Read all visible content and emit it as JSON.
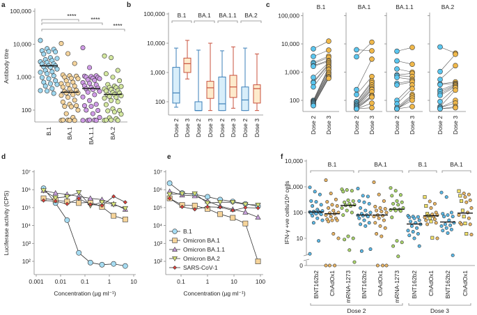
{
  "chart_data": [
    {
      "panel_label": "a",
      "type": "scatter",
      "ylabel": "Antibody titre",
      "yscale": "log",
      "ylim": [
        40,
        100000
      ],
      "yticks": [
        "100",
        "1,000",
        "10,000",
        "100,000"
      ],
      "categories": [
        "B.1",
        "BA.1",
        "BA.1.1",
        "BA.2"
      ],
      "colors": [
        "#9fd8f0",
        "#f5d49c",
        "#cf9be6",
        "#d4e8a0"
      ],
      "medians": [
        2200,
        350,
        450,
        300
      ],
      "values": [
        [
          13000,
          7500,
          7000,
          6500,
          6000,
          6000,
          5000,
          4000,
          3700,
          3500,
          3200,
          3000,
          2800,
          2600,
          2500,
          2300,
          2200,
          2100,
          2000,
          1800,
          1600,
          1500,
          1400,
          1300,
          1100,
          1000,
          900,
          800,
          700,
          650,
          600,
          550,
          450,
          400,
          380,
          330
        ],
        [
          10500,
          5300,
          2600,
          1200,
          1100,
          1100,
          1000,
          950,
          900,
          800,
          700,
          650,
          600,
          550,
          500,
          450,
          400,
          380,
          350,
          340,
          330,
          300,
          280,
          250,
          200,
          180,
          150,
          140,
          130,
          130,
          100,
          80,
          60,
          50,
          50,
          50,
          50,
          50
        ],
        [
          7800,
          2000,
          1100,
          1100,
          1050,
          1000,
          1000,
          950,
          900,
          850,
          800,
          700,
          650,
          600,
          550,
          500,
          470,
          450,
          420,
          380,
          350,
          300,
          250,
          200,
          150,
          140,
          130,
          100,
          100,
          80,
          60,
          50,
          50,
          50,
          50,
          50
        ],
        [
          4400,
          4000,
          1600,
          1300,
          1000,
          800,
          600,
          550,
          520,
          500,
          480,
          450,
          420,
          400,
          380,
          350,
          330,
          300,
          300,
          280,
          260,
          250,
          230,
          200,
          180,
          150,
          110,
          100,
          95,
          90,
          75,
          60,
          55,
          50,
          50,
          50,
          50
        ]
      ],
      "significance": [
        {
          "from": "B.1",
          "to": "BA.1",
          "label": "****"
        },
        {
          "from": "B.1",
          "to": "BA.1.1",
          "label": "****"
        },
        {
          "from": "B.1",
          "to": "BA.2",
          "label": "****"
        }
      ]
    },
    {
      "panel_label": "b",
      "type": "box",
      "yscale": "log",
      "ylim": [
        40,
        100000
      ],
      "yticks": [
        "100",
        "1,000",
        "10,000",
        "100,000"
      ],
      "groups": [
        "B.1",
        "BA.1",
        "BA.1.1",
        "BA.2"
      ],
      "categories": [
        "Dose 2",
        "Dose 3"
      ],
      "colors": {
        "Dose 2": "#3b7fb8",
        "Dose 3": "#c8503c"
      },
      "boxes": [
        {
          "group": "B.1",
          "dose": "Dose 2",
          "min": 65,
          "q1": 90,
          "median": 200,
          "q3": 1500,
          "max": 6800
        },
        {
          "group": "B.1",
          "dose": "Dose 3",
          "min": 600,
          "q1": 1000,
          "median": 2000,
          "q3": 3100,
          "max": 12500
        },
        {
          "group": "BA.1",
          "dose": "Dose 2",
          "min": 50,
          "q1": 50,
          "median": 50,
          "q3": 100,
          "max": 5800
        },
        {
          "group": "BA.1",
          "dose": "Dose 3",
          "min": 50,
          "q1": 130,
          "median": 300,
          "q3": 500,
          "max": 10000
        },
        {
          "group": "BA.1.1",
          "dose": "Dose 2",
          "min": 50,
          "q1": 50,
          "median": 85,
          "q3": 700,
          "max": 5500
        },
        {
          "group": "BA.1.1",
          "dose": "Dose 3",
          "min": 60,
          "q1": 140,
          "median": 320,
          "q3": 800,
          "max": 7500
        },
        {
          "group": "BA.2",
          "dose": "Dose 2",
          "min": 50,
          "q1": 50,
          "median": 115,
          "q3": 320,
          "max": 6800
        },
        {
          "group": "BA.2",
          "dose": "Dose 3",
          "min": 50,
          "q1": 90,
          "median": 280,
          "q3": 380,
          "max": 4300
        }
      ]
    },
    {
      "panel_label": "c",
      "type": "paired-scatter",
      "yscale": "log",
      "ylim": [
        40,
        100000
      ],
      "yticks": [
        "100",
        "1,000",
        "10,000",
        "100,000"
      ],
      "categories": [
        "Dose 2",
        "Dose 3"
      ],
      "colors": {
        "Dose 2": "#5bc6ef",
        "Dose 3": "#f0b84a"
      },
      "subpanels": [
        {
          "title": "B.1",
          "pairs": [
            [
              6700,
              12500
            ],
            [
              3600,
              6000
            ],
            [
              2200,
              3700
            ],
            [
              2000,
              3300
            ],
            [
              1700,
              2600
            ],
            [
              1600,
              2400
            ],
            [
              650,
              2200
            ],
            [
              450,
              2000
            ],
            [
              420,
              1800
            ],
            [
              300,
              1600
            ],
            [
              100,
              1500
            ],
            [
              95,
              1300
            ],
            [
              90,
              1200
            ],
            [
              85,
              1000
            ],
            [
              80,
              900
            ],
            [
              75,
              800
            ],
            [
              70,
              700
            ],
            [
              65,
              650
            ],
            [
              65,
              600
            ]
          ]
        },
        {
          "title": "BA.1",
          "pairs": [
            [
              6200,
              5700
            ],
            [
              3500,
              11500
            ],
            [
              240,
              2900
            ],
            [
              160,
              700
            ],
            [
              90,
              480
            ],
            [
              85,
              420
            ],
            [
              75,
              350
            ],
            [
              70,
              300
            ],
            [
              65,
              260
            ],
            [
              60,
              240
            ],
            [
              55,
              200
            ],
            [
              55,
              150
            ],
            [
              50,
              140
            ],
            [
              50,
              130
            ],
            [
              50,
              80
            ],
            [
              50,
              55
            ]
          ]
        },
        {
          "title": "BA.1.1",
          "pairs": [
            [
              5500,
              7500
            ],
            [
              2500,
              1900
            ],
            [
              1300,
              1000
            ],
            [
              800,
              900
            ],
            [
              750,
              700
            ],
            [
              650,
              550
            ],
            [
              400,
              500
            ],
            [
              350,
              450
            ],
            [
              100,
              350
            ],
            [
              75,
              260
            ],
            [
              55,
              160
            ],
            [
              50,
              140
            ],
            [
              50,
              120
            ],
            [
              50,
              100
            ],
            [
              50,
              60
            ]
          ]
        },
        {
          "title": "BA.2",
          "pairs": [
            [
              7800,
              4700
            ],
            [
              1050,
              4300
            ],
            [
              550,
              1700
            ],
            [
              380,
              450
            ],
            [
              360,
              400
            ],
            [
              230,
              380
            ],
            [
              200,
              350
            ],
            [
              170,
              330
            ],
            [
              150,
              300
            ],
            [
              90,
              280
            ],
            [
              60,
              230
            ],
            [
              55,
              100
            ],
            [
              55,
              80
            ],
            [
              50,
              60
            ],
            [
              50,
              55
            ]
          ]
        }
      ]
    },
    {
      "panel_label": "d",
      "type": "line",
      "xlabel": "Concentration (µg ml⁻¹)",
      "ylabel": "Luciferase activity (CPS)",
      "xscale": "log",
      "yscale": "log",
      "xlim": [
        0.001,
        10
      ],
      "ylim": [
        30,
        10000000
      ],
      "xticks": [
        "0.001",
        "0.01",
        "0.1",
        "1",
        "10"
      ],
      "yticks": [
        "10²",
        "10³",
        "10⁴",
        "10⁵",
        "10⁶",
        "10⁷"
      ],
      "x": [
        0.002,
        0.0062,
        0.0185,
        0.056,
        0.167,
        0.5,
        1.5,
        4.5
      ],
      "series": [
        {
          "name": "B.1",
          "values": [
            1200000,
            180000,
            20000,
            300,
            85,
            65,
            72,
            55
          ]
        },
        {
          "name": "Omicron BA.1",
          "values": [
            330000,
            260000,
            220000,
            180000,
            200000,
            110000,
            35000,
            22000
          ]
        },
        {
          "name": "Omicron BA.1.1",
          "values": [
            900000,
            650000,
            550000,
            420000,
            330000,
            280000,
            160000,
            80000
          ]
        },
        {
          "name": "Omicron BA.2",
          "values": [
            900000,
            350000,
            400000,
            700000,
            130000,
            200000,
            150000,
            90000
          ]
        },
        {
          "name": "SARS-CoV-1",
          "values": [
            250000,
            230000,
            160000,
            320000,
            150000,
            130000,
            420000,
            200000
          ]
        }
      ]
    },
    {
      "panel_label": "e",
      "type": "line",
      "xlabel": "Concentration (µg ml⁻¹)",
      "xscale": "log",
      "yscale": "log",
      "xlim": [
        0.03,
        130
      ],
      "ylim": [
        30,
        10000000
      ],
      "xticks": [
        "0.1",
        "1",
        "10",
        "100"
      ],
      "yticks": [
        "10²",
        "10³",
        "10⁴",
        "10⁵",
        "10⁶",
        "10⁷"
      ],
      "legend": "bottom-left",
      "x": [
        0.037,
        0.11,
        0.33,
        1,
        3,
        9,
        27,
        81
      ],
      "series": [
        {
          "name": "B.1",
          "values": [
            2300000,
            650000,
            550000,
            400000,
            280000,
            220000,
            160000,
            120000
          ]
        },
        {
          "name": "Omicron BA.1",
          "values": [
            330000,
            140000,
            130000,
            85000,
            43000,
            27000,
            13000,
            100
          ]
        },
        {
          "name": "Omicron BA.1.1",
          "values": [
            800000,
            500000,
            450000,
            230000,
            120000,
            80000,
            55000,
            29000
          ]
        },
        {
          "name": "Omicron BA.2",
          "values": [
            550000,
            600000,
            600000,
            180000,
            200000,
            200000,
            150000,
            140000
          ]
        },
        {
          "name": "SARS-CoV-1",
          "values": [
            330000,
            110000,
            80000,
            110000,
            105000,
            70000,
            100000,
            95000
          ]
        }
      ],
      "series_styles": [
        {
          "marker": "circle",
          "color": "#a6dcf2"
        },
        {
          "marker": "square",
          "color": "#f6d49a"
        },
        {
          "marker": "triangle-up",
          "color": "#c8a0dc"
        },
        {
          "marker": "triangle-down",
          "color": "#d6e27a"
        },
        {
          "marker": "diamond",
          "color": "#e0413a"
        }
      ]
    },
    {
      "panel_label": "f",
      "type": "scatter",
      "ylabel": "IFN-γ +ve cells/10⁶ cells",
      "yscale": "log-with-zero",
      "ylim": [
        0,
        10000
      ],
      "yticks": [
        "0",
        "10",
        "100",
        "1,000",
        "10,000"
      ],
      "categories": [
        "BNT162b2",
        "ChAdOx1",
        "mRNA-1273",
        "BNT162b2",
        "ChAdOx1",
        "mRNA-1273",
        "BNT162b2",
        "ChAdOx1",
        "BNT162b2",
        "ChAdOx1"
      ],
      "variant_groups": [
        {
          "label": "B.1",
          "columns": [
            0,
            2
          ]
        },
        {
          "label": "BA.1",
          "columns": [
            3,
            5
          ]
        },
        {
          "label": "B.1",
          "columns": [
            6,
            7
          ]
        },
        {
          "label": "BA.1",
          "columns": [
            8,
            9
          ]
        }
      ],
      "dose_groups": [
        {
          "label": "Dose 2",
          "columns": [
            0,
            5
          ]
        },
        {
          "label": "Dose 3",
          "columns": [
            6,
            9
          ]
        }
      ],
      "vaccine_colors": {
        "BNT162b2": "#5bb8e6",
        "ChAdOx1": "#e8b464",
        "mRNA-1273": "#a9d46a"
      },
      "medians": [
        105,
        90,
        190,
        80,
        80,
        135,
        36,
        75,
        43,
        95
      ],
      "values": [
        [
          950,
          650,
          500,
          280,
          260,
          200,
          180,
          130,
          115,
          110,
          108,
          105,
          100,
          98,
          95,
          90,
          85,
          75,
          60,
          50,
          40,
          8,
          2.5
        ],
        [
          1800,
          550,
          320,
          260,
          200,
          180,
          150,
          120,
          100,
          95,
          90,
          80,
          70,
          60,
          55,
          50,
          50,
          45,
          15,
          10,
          0,
          0,
          0
        ],
        [
          800,
          750,
          700,
          650,
          300,
          280,
          250,
          220,
          200,
          190,
          180,
          150,
          120,
          100,
          80,
          12,
          10,
          9,
          3.5,
          1.2
        ],
        [
          850,
          450,
          420,
          280,
          250,
          220,
          150,
          120,
          100,
          90,
          80,
          78,
          75,
          70,
          60,
          50,
          40,
          35,
          30,
          3.8,
          3.2
        ],
        [
          1500,
          500,
          280,
          170,
          150,
          140,
          120,
          110,
          100,
          80,
          75,
          70,
          60,
          50,
          40,
          30,
          25,
          15,
          12,
          0,
          0,
          0
        ],
        [
          900,
          700,
          480,
          450,
          280,
          250,
          220,
          200,
          150,
          140,
          130,
          125,
          120,
          115,
          65,
          8,
          7,
          5,
          2
        ],
        [
          75,
          70,
          68,
          65,
          60,
          50,
          45,
          40,
          35,
          30,
          25,
          20,
          18,
          15,
          13,
          10,
          5
        ],
        [
          400,
          270,
          220,
          180,
          150,
          100,
          90,
          85,
          80,
          75,
          70,
          65,
          60,
          55,
          50,
          45,
          40,
          35,
          10.5,
          10
        ],
        [
          600,
          400,
          100,
          90,
          80,
          70,
          70,
          50,
          40,
          35,
          32,
          30,
          25,
          22,
          20,
          16,
          2.2
        ],
        [
          680,
          550,
          500,
          450,
          400,
          300,
          280,
          250,
          150,
          120,
          100,
          80,
          70,
          60,
          40,
          38,
          35,
          35,
          15,
          14
        ]
      ]
    }
  ]
}
